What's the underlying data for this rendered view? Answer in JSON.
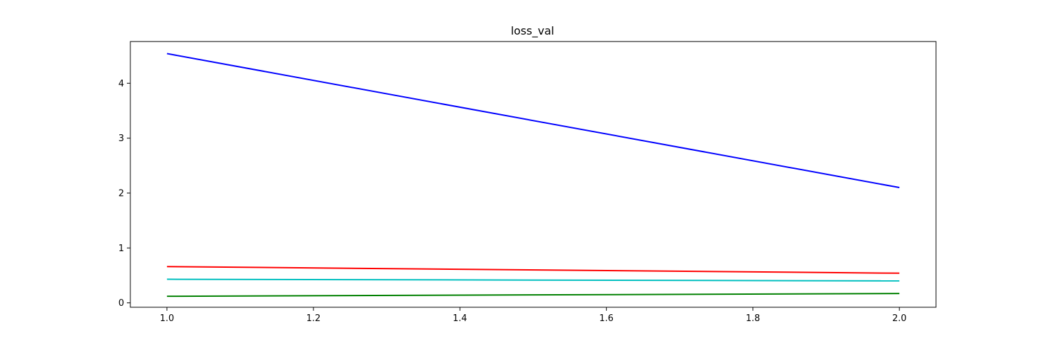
{
  "chart_data": {
    "type": "line",
    "title": "loss_val",
    "xlabel": "",
    "ylabel": "",
    "xlim": [
      0.95,
      2.05
    ],
    "ylim": [
      -0.08,
      4.76
    ],
    "x_ticks": [
      1.0,
      1.2,
      1.4,
      1.6,
      1.8,
      2.0
    ],
    "x_tick_labels": [
      "1.0",
      "1.2",
      "1.4",
      "1.6",
      "1.8",
      "2.0"
    ],
    "y_ticks": [
      0,
      1,
      2,
      3,
      4
    ],
    "y_tick_labels": [
      "0",
      "1",
      "2",
      "3",
      "4"
    ],
    "grid": false,
    "legend": "none",
    "x": [
      1.0,
      2.0
    ],
    "series": [
      {
        "color": "#0000ff",
        "values": [
          4.54,
          2.1
        ]
      },
      {
        "color": "#ff0000",
        "values": [
          0.66,
          0.54
        ]
      },
      {
        "color": "#00bfbf",
        "values": [
          0.43,
          0.4
        ]
      },
      {
        "color": "#008000",
        "values": [
          0.12,
          0.17
        ]
      }
    ]
  }
}
